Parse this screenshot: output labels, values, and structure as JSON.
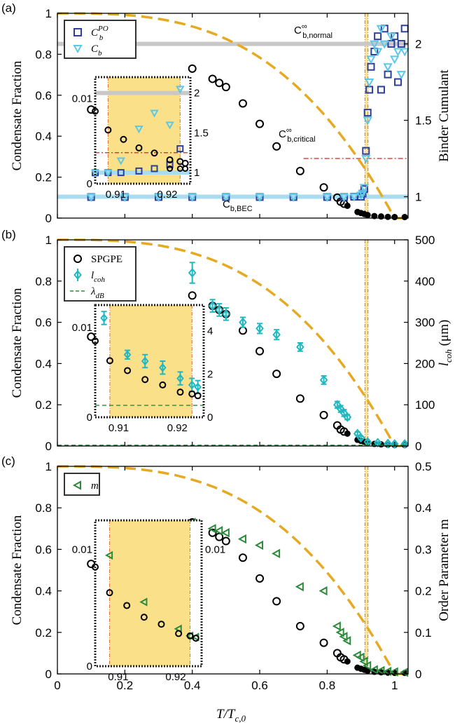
{
  "panels": [
    {
      "label": "(a)",
      "ylabel": "Condensate Fraction",
      "ylabel2": "Binder Cumulant",
      "yticks": [
        "0",
        "0.2",
        "0.4",
        "0.6",
        "0.8",
        "1"
      ],
      "y2ticks": [
        "1",
        "1.5",
        "2"
      ],
      "legend": [
        {
          "base": "C",
          "sub": "b",
          "sup": "PO",
          "marker": "square",
          "color": "#2c3f99"
        },
        {
          "base": "C",
          "sub": "b",
          "sup": "",
          "marker": "tri-down",
          "color": "#5cc8e6"
        }
      ],
      "annotations": {
        "normal": {
          "base": "C",
          "sup": "∞",
          "sub": "b,normal",
          "color": "#9a9a9a"
        },
        "critical": {
          "base": "C",
          "sup": "∞",
          "sub": "b,critical",
          "color": "#d62020"
        },
        "bec": {
          "base": "C",
          "sub": "b,BEC",
          "color": "#5cc8e6"
        }
      },
      "inset": {
        "xticks": [
          "0.91",
          "0.92"
        ],
        "yticks": [
          "0",
          "0.01"
        ],
        "y2ticks": [
          "1",
          "1.5",
          "2"
        ]
      }
    },
    {
      "label": "(b)",
      "ylabel": "Condensate Fraction",
      "ylabel2": "l_coh (μm)",
      "yticks": [
        "0",
        "0.2",
        "0.4",
        "0.6",
        "0.8",
        "1"
      ],
      "y2ticks": [
        "0",
        "100",
        "200",
        "300",
        "400",
        "500"
      ],
      "legend": [
        {
          "base": "SPGPE",
          "marker": "circle",
          "color": "#000000"
        },
        {
          "base": "l",
          "sub": "coh",
          "marker": "diamond-err",
          "color": "#20b8c0"
        },
        {
          "base": "λ",
          "sub": "dB",
          "marker": "dash",
          "color": "#2a8a3a"
        }
      ],
      "inset": {
        "xticks": [
          "0.91",
          "0.92"
        ],
        "yticks": [
          "0",
          "0.01"
        ],
        "y2ticks": [
          "0",
          "2",
          "4"
        ]
      }
    },
    {
      "label": "(c)",
      "ylabel": "Condensate Fraction",
      "ylabel2": "Order Parameter m",
      "yticks": [
        "0",
        "0.2",
        "0.4",
        "0.6",
        "0.8",
        "1"
      ],
      "y2ticks": [
        "0",
        "0.1",
        "0.2",
        "0.3",
        "0.4",
        "0.5"
      ],
      "legend": [
        {
          "base": "m",
          "marker": "tri-left",
          "color": "#2a8a3a"
        }
      ],
      "inset": {
        "xticks": [
          "0.91",
          "0.92"
        ],
        "yticks": [
          "0",
          "0.01"
        ],
        "y2ticks": [
          "0.01"
        ]
      }
    }
  ],
  "xlabel": "T/T_c,0",
  "xticks": [
    "0",
    "0.2",
    "0.4",
    "0.6",
    "0.8",
    "1"
  ],
  "chart_data": {
    "type": "scatter",
    "xlim": [
      0,
      1.04
    ],
    "ylim": [
      0,
      1
    ],
    "shaded_band": [
      0.912,
      0.921
    ],
    "critical_line_x": 0.917,
    "colors": {
      "dashed": "#e6aa22",
      "band": "#fbe08a",
      "critical_line": "#e07030",
      "bec_line": "#a9dcf0",
      "normal_line": "#c8c8c8",
      "critical_binder": "#d62020"
    },
    "condensate_fraction_spgpe": [
      [
        0.1,
        0.53
      ],
      [
        0.2,
        0.42
      ],
      [
        0.25,
        0.37
      ],
      [
        0.3,
        0.32
      ],
      [
        0.35,
        0.29
      ],
      [
        0.4,
        0.73
      ],
      [
        0.46,
        0.68
      ],
      [
        0.48,
        0.66
      ],
      [
        0.5,
        0.64
      ],
      [
        0.55,
        0.56
      ],
      [
        0.6,
        0.46
      ],
      [
        0.65,
        0.35
      ],
      [
        0.72,
        0.23
      ],
      [
        0.79,
        0.15
      ],
      [
        0.83,
        0.1
      ],
      [
        0.84,
        0.08
      ],
      [
        0.85,
        0.07
      ],
      [
        0.86,
        0.06
      ],
      [
        0.89,
        0.03
      ],
      [
        0.9,
        0.025
      ],
      [
        0.91,
        0.02
      ],
      [
        0.92,
        0.015
      ],
      [
        0.94,
        0.01
      ],
      [
        0.96,
        0.008
      ],
      [
        0.98,
        0.006
      ],
      [
        1.0,
        0.005
      ],
      [
        1.03,
        0.005
      ]
    ],
    "analytic_ideal_gas": "1 - (T/Tc0)^3 (dashed)",
    "panel_a": {
      "y2lim": [
        0.86,
        2.2
      ],
      "C_b_PO": [
        [
          0.1,
          0.998
        ],
        [
          0.2,
          0.998
        ],
        [
          0.3,
          0.998
        ],
        [
          0.4,
          0.998
        ],
        [
          0.5,
          0.998
        ],
        [
          0.6,
          0.998
        ],
        [
          0.7,
          0.998
        ],
        [
          0.8,
          0.998
        ],
        [
          0.85,
          0.998
        ],
        [
          0.88,
          1.0
        ],
        [
          0.9,
          1.0
        ],
        [
          0.905,
          1.02
        ],
        [
          0.91,
          1.05
        ],
        [
          0.915,
          1.3
        ],
        [
          0.92,
          1.55
        ],
        [
          0.925,
          1.7
        ],
        [
          0.93,
          1.85
        ],
        [
          0.94,
          1.95
        ],
        [
          0.95,
          2.05
        ],
        [
          0.96,
          1.7
        ],
        [
          0.97,
          2.1
        ],
        [
          0.98,
          1.8
        ],
        [
          0.99,
          2.0
        ],
        [
          1.0,
          2.05
        ],
        [
          1.01,
          1.75
        ],
        [
          1.02,
          2.0
        ],
        [
          1.03,
          2.1
        ]
      ],
      "C_b": [
        [
          0.1,
          0.998
        ],
        [
          0.2,
          0.998
        ],
        [
          0.3,
          0.998
        ],
        [
          0.4,
          0.998
        ],
        [
          0.5,
          0.998
        ],
        [
          0.6,
          0.998
        ],
        [
          0.7,
          0.998
        ],
        [
          0.8,
          0.998
        ],
        [
          0.85,
          0.998
        ],
        [
          0.88,
          1.0
        ],
        [
          0.9,
          1.01
        ],
        [
          0.905,
          1.02
        ],
        [
          0.91,
          1.06
        ],
        [
          0.915,
          1.25
        ],
        [
          0.92,
          1.5
        ],
        [
          0.925,
          1.75
        ],
        [
          0.93,
          1.9
        ],
        [
          0.94,
          2.0
        ],
        [
          0.95,
          1.95
        ],
        [
          0.96,
          2.1
        ],
        [
          0.97,
          2.0
        ],
        [
          0.98,
          1.85
        ],
        [
          0.99,
          2.05
        ],
        [
          1.0,
          1.9
        ],
        [
          1.01,
          1.95
        ],
        [
          1.02,
          1.8
        ],
        [
          1.03,
          1.95
        ]
      ],
      "C_b_normal": 2.0,
      "C_b_critical": 1.25,
      "C_b_BEC": 1.0
    },
    "panel_b": {
      "y2lim": [
        0,
        500
      ],
      "l_coh_um": [
        [
          0.4,
          420,
          25
        ],
        [
          0.46,
          340,
          15
        ],
        [
          0.48,
          330,
          15
        ],
        [
          0.5,
          320,
          15
        ],
        [
          0.55,
          300,
          12
        ],
        [
          0.6,
          285,
          12
        ],
        [
          0.65,
          270,
          12
        ],
        [
          0.72,
          240,
          10
        ],
        [
          0.79,
          160,
          10
        ],
        [
          0.83,
          100,
          8
        ],
        [
          0.84,
          90,
          8
        ],
        [
          0.85,
          80,
          8
        ],
        [
          0.86,
          70,
          6
        ],
        [
          0.89,
          30,
          4
        ],
        [
          0.9,
          20,
          4
        ],
        [
          0.92,
          10,
          3
        ],
        [
          0.95,
          8,
          2
        ],
        [
          0.98,
          6,
          2
        ],
        [
          1.0,
          5,
          2
        ],
        [
          1.03,
          5,
          2
        ]
      ],
      "lambda_dB_um": 2
    },
    "panel_c": {
      "y2lim": [
        0,
        0.5
      ],
      "m": [
        [
          0.4,
          0.365
        ],
        [
          0.46,
          0.35
        ],
        [
          0.48,
          0.345
        ],
        [
          0.5,
          0.34
        ],
        [
          0.55,
          0.325
        ],
        [
          0.6,
          0.31
        ],
        [
          0.65,
          0.29
        ],
        [
          0.72,
          0.21
        ],
        [
          0.79,
          0.2
        ],
        [
          0.83,
          0.115
        ],
        [
          0.84,
          0.1
        ],
        [
          0.85,
          0.09
        ],
        [
          0.86,
          0.08
        ],
        [
          0.89,
          0.045
        ],
        [
          0.9,
          0.04
        ],
        [
          0.91,
          0.03
        ],
        [
          0.92,
          0.02
        ],
        [
          0.94,
          0.01
        ],
        [
          0.96,
          0.008
        ],
        [
          0.98,
          0.006
        ],
        [
          1.0,
          0.005
        ],
        [
          1.03,
          0.004
        ]
      ]
    },
    "inset": {
      "xlim": [
        0.906,
        0.9245
      ],
      "band": [
        0.9085,
        0.9225
      ],
      "spgpe": [
        [
          0.906,
          0.0085
        ],
        [
          0.9085,
          0.0063
        ],
        [
          0.9115,
          0.0052
        ],
        [
          0.9145,
          0.0042
        ],
        [
          0.9175,
          0.0036
        ],
        [
          0.9205,
          0.0028
        ],
        [
          0.9225,
          0.0026
        ],
        [
          0.9235,
          0.0024
        ]
      ],
      "C_b_PO_inset": [
        [
          0.906,
          0.998
        ],
        [
          0.9085,
          1.0
        ],
        [
          0.911,
          1.0
        ],
        [
          0.9145,
          1.02
        ],
        [
          0.9175,
          1.05
        ],
        [
          0.9205,
          1.1
        ],
        [
          0.9225,
          1.3
        ]
      ],
      "C_b_inset": [
        [
          0.906,
          0.998
        ],
        [
          0.9085,
          1.0
        ],
        [
          0.911,
          1.15
        ],
        [
          0.9145,
          1.55
        ],
        [
          0.9175,
          1.75
        ],
        [
          0.9205,
          1.6
        ],
        [
          0.9225,
          2.05
        ]
      ],
      "l_coh_inset": [
        [
          0.9075,
          4.6,
          0.3
        ],
        [
          0.9115,
          2.9,
          0.2
        ],
        [
          0.9145,
          2.6,
          0.3
        ],
        [
          0.9175,
          2.3,
          0.3
        ],
        [
          0.9205,
          1.8,
          0.3
        ],
        [
          0.9225,
          1.5,
          0.3
        ],
        [
          0.9235,
          1.4,
          0.3
        ]
      ],
      "m_inset": [
        [
          0.9085,
          0.0095
        ],
        [
          0.9145,
          0.0055
        ],
        [
          0.9205,
          0.0032
        ],
        [
          0.9225,
          0.0026
        ],
        [
          0.9235,
          0.0025
        ]
      ]
    }
  }
}
